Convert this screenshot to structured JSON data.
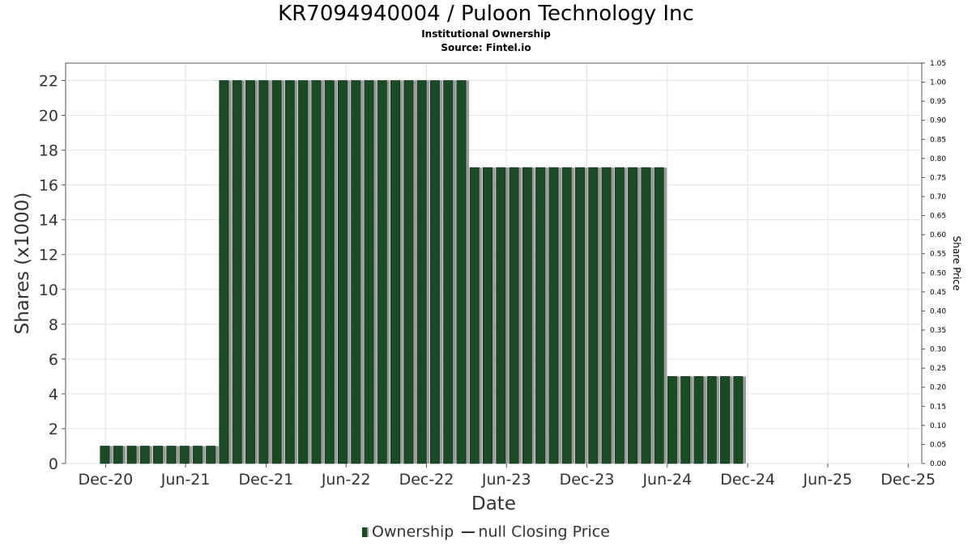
{
  "header": {
    "title": "KR7094940004 / Puloon Technology Inc",
    "subtitle": "Institutional Ownership",
    "source": "Source: Fintel.io"
  },
  "legend": {
    "ownership_label": "Ownership",
    "price_label": "null Closing Price"
  },
  "colors": {
    "bar": "#1a4a26",
    "bar_shadow": "#9a9a9a",
    "grid": "#e2e2e2",
    "axis": "#555555"
  },
  "chart_data": {
    "type": "bar",
    "title": "KR7094940004 / Puloon Technology Inc",
    "xlabel": "Date",
    "ylabel": "Shares (x1000)",
    "y2label": "Share Price",
    "ylim": [
      0,
      23
    ],
    "y_ticks": [
      0,
      2,
      4,
      6,
      8,
      10,
      12,
      14,
      16,
      18,
      20,
      22
    ],
    "y2lim": [
      0,
      1.05
    ],
    "y2_ticks": [
      "0.00",
      "0.05",
      "0.10",
      "0.15",
      "0.20",
      "0.25",
      "0.30",
      "0.35",
      "0.40",
      "0.45",
      "0.50",
      "0.55",
      "0.60",
      "0.65",
      "0.70",
      "0.75",
      "0.80",
      "0.85",
      "0.90",
      "0.95",
      "1.00",
      "1.05"
    ],
    "x_start": "2020-09-01",
    "x_end": "2026-01-01",
    "x_ticks": [
      {
        "label": "Dec-20",
        "date": "2020-12-01"
      },
      {
        "label": "Jun-21",
        "date": "2021-06-01"
      },
      {
        "label": "Dec-21",
        "date": "2021-12-01"
      },
      {
        "label": "Jun-22",
        "date": "2022-06-01"
      },
      {
        "label": "Dec-22",
        "date": "2022-12-01"
      },
      {
        "label": "Jun-23",
        "date": "2023-06-01"
      },
      {
        "label": "Dec-23",
        "date": "2023-12-01"
      },
      {
        "label": "Jun-24",
        "date": "2024-06-01"
      },
      {
        "label": "Dec-24",
        "date": "2024-12-01"
      },
      {
        "label": "Jun-25",
        "date": "2025-06-01"
      },
      {
        "label": "Dec-25",
        "date": "2025-12-01"
      }
    ],
    "grid": true,
    "legend_position": "bottom",
    "series": [
      {
        "name": "Ownership",
        "points": [
          {
            "date": "2020-12-01",
            "value": 1
          },
          {
            "date": "2020-12-31",
            "value": 1
          },
          {
            "date": "2021-01-31",
            "value": 1
          },
          {
            "date": "2021-03-02",
            "value": 1
          },
          {
            "date": "2021-04-01",
            "value": 1
          },
          {
            "date": "2021-05-01",
            "value": 1
          },
          {
            "date": "2021-05-31",
            "value": 1
          },
          {
            "date": "2021-06-30",
            "value": 1
          },
          {
            "date": "2021-07-30",
            "value": 1
          },
          {
            "date": "2021-08-29",
            "value": 22
          },
          {
            "date": "2021-09-28",
            "value": 22
          },
          {
            "date": "2021-10-28",
            "value": 22
          },
          {
            "date": "2021-11-27",
            "value": 22
          },
          {
            "date": "2021-12-27",
            "value": 22
          },
          {
            "date": "2022-01-26",
            "value": 22
          },
          {
            "date": "2022-02-25",
            "value": 22
          },
          {
            "date": "2022-03-27",
            "value": 22
          },
          {
            "date": "2022-04-26",
            "value": 22
          },
          {
            "date": "2022-05-26",
            "value": 22
          },
          {
            "date": "2022-06-25",
            "value": 22
          },
          {
            "date": "2022-07-25",
            "value": 22
          },
          {
            "date": "2022-08-24",
            "value": 22
          },
          {
            "date": "2022-09-23",
            "value": 22
          },
          {
            "date": "2022-10-23",
            "value": 22
          },
          {
            "date": "2022-11-22",
            "value": 22
          },
          {
            "date": "2022-12-22",
            "value": 22
          },
          {
            "date": "2023-01-21",
            "value": 22
          },
          {
            "date": "2023-02-20",
            "value": 22
          },
          {
            "date": "2023-03-22",
            "value": 17
          },
          {
            "date": "2023-04-21",
            "value": 17
          },
          {
            "date": "2023-05-21",
            "value": 17
          },
          {
            "date": "2023-06-20",
            "value": 17
          },
          {
            "date": "2023-07-20",
            "value": 17
          },
          {
            "date": "2023-08-19",
            "value": 17
          },
          {
            "date": "2023-09-18",
            "value": 17
          },
          {
            "date": "2023-10-18",
            "value": 17
          },
          {
            "date": "2023-11-17",
            "value": 17
          },
          {
            "date": "2023-12-17",
            "value": 17
          },
          {
            "date": "2024-01-16",
            "value": 17
          },
          {
            "date": "2024-02-15",
            "value": 17
          },
          {
            "date": "2024-03-16",
            "value": 17
          },
          {
            "date": "2024-04-15",
            "value": 17
          },
          {
            "date": "2024-05-15",
            "value": 17
          },
          {
            "date": "2024-06-14",
            "value": 5
          },
          {
            "date": "2024-07-14",
            "value": 5
          },
          {
            "date": "2024-08-13",
            "value": 5
          },
          {
            "date": "2024-09-12",
            "value": 5
          },
          {
            "date": "2024-10-12",
            "value": 5
          },
          {
            "date": "2024-11-11",
            "value": 5
          }
        ]
      }
    ]
  }
}
